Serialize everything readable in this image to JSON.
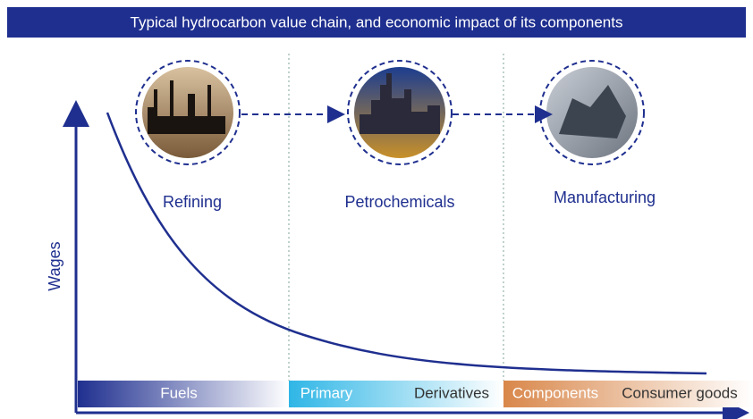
{
  "header": {
    "title": "Typical hydrocarbon value chain, and economic impact of its components"
  },
  "stages": [
    {
      "label": "Refining"
    },
    {
      "label": "Petrochemicals"
    },
    {
      "label": "Manufacturing"
    }
  ],
  "axis": {
    "y_label": "Wages"
  },
  "segments": [
    {
      "labels": [
        "Fuels"
      ]
    },
    {
      "labels": [
        "Primary",
        "Derivatives"
      ]
    },
    {
      "labels": [
        "Components",
        "Consumer goods"
      ]
    }
  ]
}
